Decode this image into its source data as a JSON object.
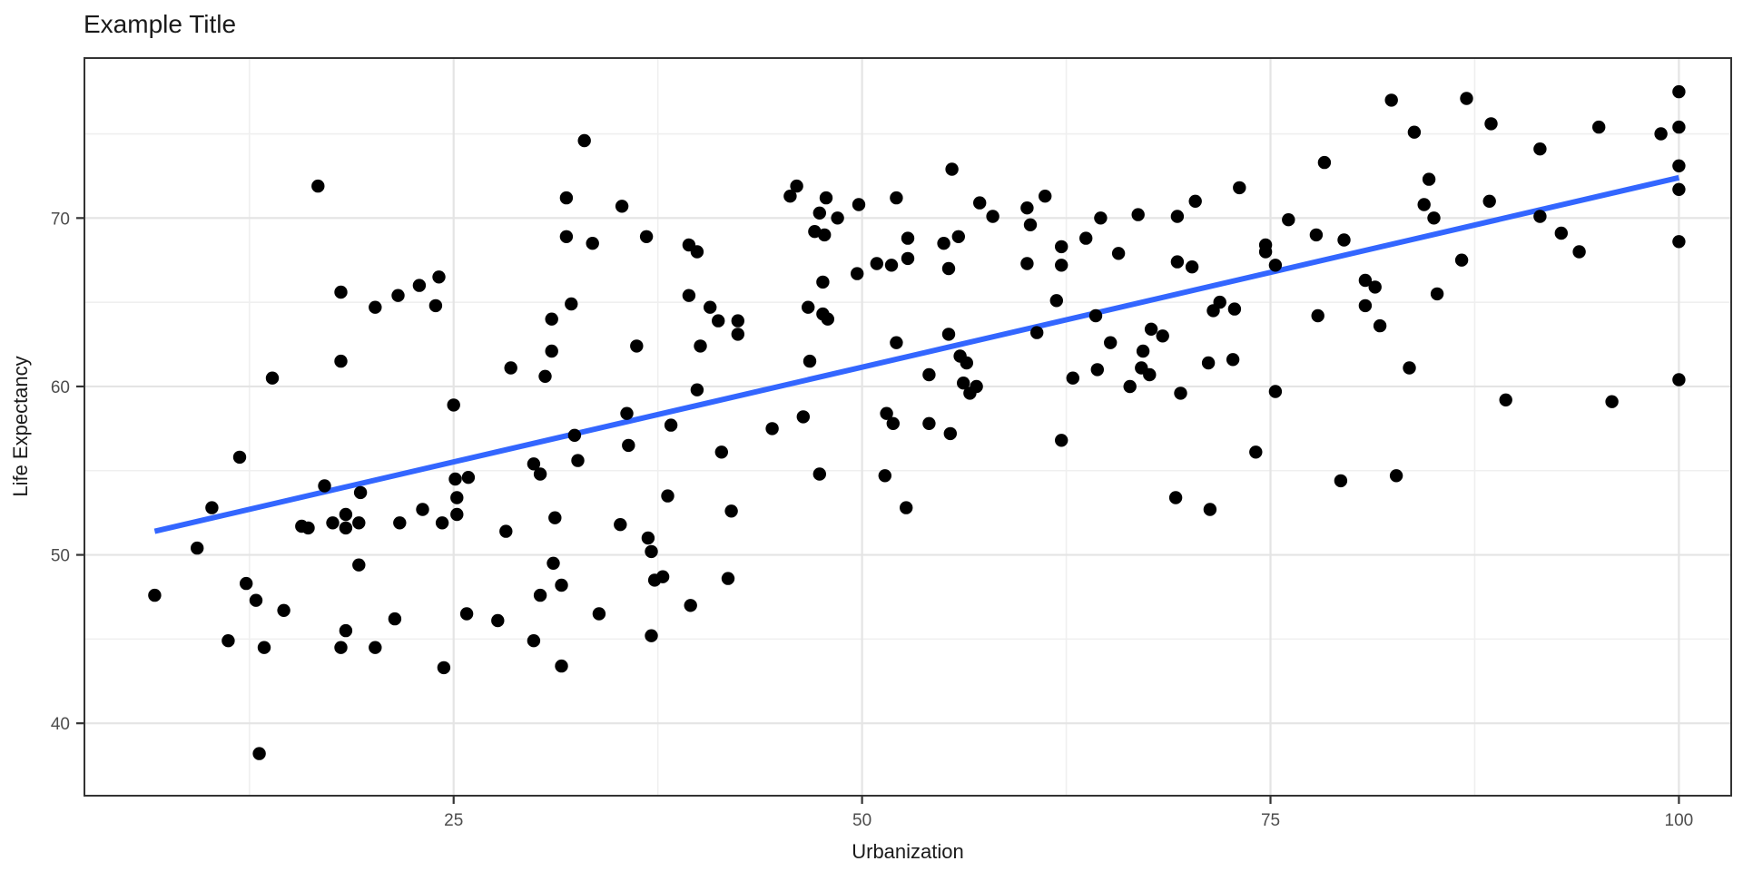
{
  "chart_data": {
    "type": "scatter",
    "title": "Example Title",
    "xlabel": "Urbanization",
    "ylabel": "Life Expectancy",
    "xlim": [
      2.4,
      103.2
    ],
    "ylim": [
      35.7,
      79.5
    ],
    "x_major_ticks": [
      25,
      50,
      75,
      100
    ],
    "x_minor_gridlines": [
      12.5,
      37.5,
      62.5,
      87.5
    ],
    "y_major_ticks": [
      40,
      50,
      60,
      70
    ],
    "y_minor_gridlines": [
      45,
      55,
      65,
      75
    ],
    "grid": "on",
    "legend": "none",
    "colors": {
      "point": "#000000",
      "trend_line": "#3366FF",
      "grid_major": "#e4e4e4",
      "grid_minor": "#efefef",
      "panel_border": "#333333",
      "tick_mark": "#333333",
      "tick_label": "#4d4d4d",
      "text": "#1a1a1a",
      "panel_background": "#ffffff"
    },
    "trend": {
      "x1": 6.7,
      "y1": 51.4,
      "x2": 100,
      "y2": 72.4
    },
    "points": [
      [
        16.7,
        71.9
      ],
      [
        18.1,
        65.6
      ],
      [
        21.6,
        65.4
      ],
      [
        22.9,
        66.0
      ],
      [
        24.1,
        66.5
      ],
      [
        20.2,
        64.7
      ],
      [
        23.9,
        64.8
      ],
      [
        33.0,
        74.6
      ],
      [
        31.9,
        71.2
      ],
      [
        35.3,
        70.7
      ],
      [
        31.9,
        68.9
      ],
      [
        33.5,
        68.5
      ],
      [
        36.8,
        68.9
      ],
      [
        39.4,
        68.4
      ],
      [
        39.9,
        68.0
      ],
      [
        45.6,
        71.3
      ],
      [
        46.0,
        71.9
      ],
      [
        47.8,
        71.2
      ],
      [
        47.4,
        70.3
      ],
      [
        48.5,
        70.0
      ],
      [
        47.1,
        69.2
      ],
      [
        47.7,
        69.0
      ],
      [
        49.8,
        70.8
      ],
      [
        52.1,
        71.2
      ],
      [
        49.7,
        66.7
      ],
      [
        50.9,
        67.3
      ],
      [
        51.8,
        67.2
      ],
      [
        52.8,
        68.8
      ],
      [
        39.4,
        65.4
      ],
      [
        47.6,
        66.2
      ],
      [
        32.2,
        64.9
      ],
      [
        40.7,
        64.7
      ],
      [
        46.7,
        64.7
      ],
      [
        47.6,
        64.3
      ],
      [
        47.9,
        64.0
      ],
      [
        55.5,
        72.9
      ],
      [
        55.9,
        68.9
      ],
      [
        57.2,
        70.9
      ],
      [
        58.0,
        70.1
      ],
      [
        60.1,
        70.6
      ],
      [
        60.1,
        67.3
      ],
      [
        61.2,
        71.3
      ],
      [
        60.3,
        69.6
      ],
      [
        55.0,
        68.5
      ],
      [
        52.8,
        67.6
      ],
      [
        55.3,
        67.0
      ],
      [
        62.2,
        68.3
      ],
      [
        62.2,
        67.2
      ],
      [
        63.7,
        68.8
      ],
      [
        64.6,
        70.0
      ],
      [
        65.7,
        67.9
      ],
      [
        66.9,
        70.2
      ],
      [
        69.3,
        70.1
      ],
      [
        69.3,
        67.4
      ],
      [
        70.2,
        67.1
      ],
      [
        70.4,
        71.0
      ],
      [
        73.1,
        71.8
      ],
      [
        61.9,
        65.1
      ],
      [
        71.9,
        65.0
      ],
      [
        71.5,
        64.5
      ],
      [
        72.8,
        64.6
      ],
      [
        74.7,
        68.4
      ],
      [
        74.7,
        68.0
      ],
      [
        75.3,
        67.2
      ],
      [
        76.1,
        69.9
      ],
      [
        77.8,
        69.0
      ],
      [
        82.4,
        77.0
      ],
      [
        87.0,
        77.1
      ],
      [
        83.8,
        75.1
      ],
      [
        88.5,
        75.6
      ],
      [
        91.5,
        74.1
      ],
      [
        95.1,
        75.4
      ],
      [
        78.3,
        73.3
      ],
      [
        98.9,
        75.0
      ],
      [
        84.7,
        72.3
      ],
      [
        84.4,
        70.8
      ],
      [
        85.0,
        70.0
      ],
      [
        88.4,
        71.0
      ],
      [
        91.5,
        70.1
      ],
      [
        92.8,
        69.1
      ],
      [
        79.5,
        68.7
      ],
      [
        93.9,
        68.0
      ],
      [
        86.7,
        67.5
      ],
      [
        80.8,
        66.3
      ],
      [
        81.4,
        65.9
      ],
      [
        85.2,
        65.5
      ],
      [
        80.8,
        64.8
      ],
      [
        100,
        77.5
      ],
      [
        100,
        75.4
      ],
      [
        100,
        73.1
      ],
      [
        100,
        71.7
      ],
      [
        100,
        68.6
      ],
      [
        100,
        60.4
      ],
      [
        18.1,
        61.5
      ],
      [
        13.9,
        60.5
      ],
      [
        25.0,
        58.9
      ],
      [
        11.9,
        55.8
      ],
      [
        17.1,
        54.1
      ],
      [
        19.3,
        53.7
      ],
      [
        10.2,
        52.8
      ],
      [
        15.7,
        51.7
      ],
      [
        16.1,
        51.6
      ],
      [
        17.6,
        51.9
      ],
      [
        18.4,
        52.4
      ],
      [
        18.4,
        51.6
      ],
      [
        19.2,
        51.9
      ],
      [
        21.7,
        51.9
      ],
      [
        23.1,
        52.7
      ],
      [
        24.3,
        51.9
      ],
      [
        25.2,
        52.4
      ],
      [
        25.2,
        53.4
      ],
      [
        25.1,
        54.5
      ],
      [
        25.9,
        54.6
      ],
      [
        9.3,
        50.4
      ],
      [
        31.0,
        64.0
      ],
      [
        31.0,
        62.1
      ],
      [
        28.5,
        61.1
      ],
      [
        30.6,
        60.6
      ],
      [
        36.2,
        62.4
      ],
      [
        40.1,
        62.4
      ],
      [
        41.2,
        63.9
      ],
      [
        42.4,
        63.9
      ],
      [
        42.4,
        63.1
      ],
      [
        39.9,
        59.8
      ],
      [
        35.6,
        58.4
      ],
      [
        38.3,
        57.7
      ],
      [
        32.4,
        57.1
      ],
      [
        35.7,
        56.5
      ],
      [
        41.4,
        56.1
      ],
      [
        44.5,
        57.5
      ],
      [
        46.4,
        58.2
      ],
      [
        46.8,
        61.5
      ],
      [
        32.6,
        55.6
      ],
      [
        29.9,
        55.4
      ],
      [
        30.3,
        54.8
      ],
      [
        47.4,
        54.8
      ],
      [
        51.4,
        54.7
      ],
      [
        51.5,
        58.4
      ],
      [
        51.9,
        57.8
      ],
      [
        52.1,
        62.6
      ],
      [
        38.1,
        53.5
      ],
      [
        42.0,
        52.6
      ],
      [
        31.2,
        52.2
      ],
      [
        28.2,
        51.4
      ],
      [
        35.2,
        51.8
      ],
      [
        36.9,
        51.0
      ],
      [
        37.1,
        50.2
      ],
      [
        52.7,
        52.8
      ],
      [
        55.3,
        63.1
      ],
      [
        56.0,
        61.8
      ],
      [
        56.4,
        61.4
      ],
      [
        54.1,
        60.7
      ],
      [
        56.2,
        60.2
      ],
      [
        56.6,
        59.6
      ],
      [
        57.0,
        60.0
      ],
      [
        60.7,
        63.2
      ],
      [
        64.3,
        64.2
      ],
      [
        65.2,
        62.6
      ],
      [
        67.2,
        62.1
      ],
      [
        64.4,
        61.0
      ],
      [
        62.9,
        60.5
      ],
      [
        67.7,
        63.4
      ],
      [
        68.4,
        63.0
      ],
      [
        67.1,
        61.1
      ],
      [
        67.6,
        60.7
      ],
      [
        66.4,
        60.0
      ],
      [
        69.5,
        59.6
      ],
      [
        71.2,
        61.4
      ],
      [
        72.7,
        61.6
      ],
      [
        75.3,
        59.7
      ],
      [
        77.9,
        64.2
      ],
      [
        54.1,
        57.8
      ],
      [
        55.4,
        57.2
      ],
      [
        62.2,
        56.8
      ],
      [
        74.1,
        56.1
      ],
      [
        69.2,
        53.4
      ],
      [
        71.3,
        52.7
      ],
      [
        79.3,
        54.4
      ],
      [
        81.7,
        63.6
      ],
      [
        83.5,
        61.1
      ],
      [
        89.4,
        59.2
      ],
      [
        95.9,
        59.1
      ],
      [
        82.7,
        54.7
      ],
      [
        6.7,
        47.6
      ],
      [
        12.3,
        48.3
      ],
      [
        12.9,
        47.3
      ],
      [
        14.6,
        46.7
      ],
      [
        19.2,
        49.4
      ],
      [
        18.4,
        45.5
      ],
      [
        21.4,
        46.2
      ],
      [
        25.8,
        46.5
      ],
      [
        27.7,
        46.1
      ],
      [
        11.2,
        44.9
      ],
      [
        13.4,
        44.5
      ],
      [
        18.1,
        44.5
      ],
      [
        20.2,
        44.5
      ],
      [
        24.4,
        43.3
      ],
      [
        13.1,
        38.2
      ],
      [
        31.1,
        49.5
      ],
      [
        31.6,
        48.2
      ],
      [
        30.3,
        47.6
      ],
      [
        33.9,
        46.5
      ],
      [
        37.3,
        48.5
      ],
      [
        37.8,
        48.7
      ],
      [
        41.8,
        48.6
      ],
      [
        39.5,
        47.0
      ],
      [
        37.1,
        45.2
      ],
      [
        29.9,
        44.9
      ],
      [
        31.6,
        43.4
      ]
    ]
  }
}
